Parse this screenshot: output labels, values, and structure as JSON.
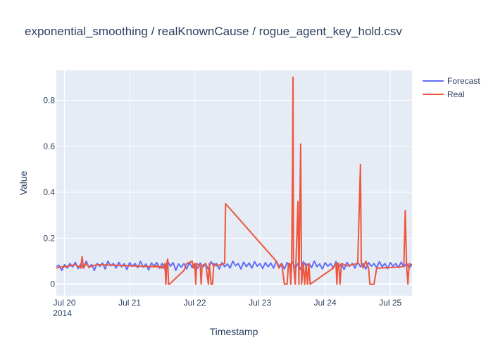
{
  "chart_data": {
    "type": "line",
    "title": "exponential_smoothing / realKnownCause / rogue_agent_key_hold.csv",
    "xlabel": "Timestamp",
    "ylabel": "Value",
    "x_ticks": [
      {
        "date": "2014-07-20",
        "label": "Jul 20",
        "sub": "2014"
      },
      {
        "date": "2014-07-21",
        "label": "Jul 21"
      },
      {
        "date": "2014-07-22",
        "label": "Jul 22"
      },
      {
        "date": "2014-07-23",
        "label": "Jul 23"
      },
      {
        "date": "2014-07-24",
        "label": "Jul 24"
      },
      {
        "date": "2014-07-25",
        "label": "Jul 25"
      }
    ],
    "xlim": [
      "2014-07-19T21:00",
      "2014-07-25T08:00"
    ],
    "y_ticks": [
      0,
      0.2,
      0.4,
      0.6,
      0.8
    ],
    "ylim": [
      -0.05,
      0.93
    ],
    "legend_position": "top-right",
    "series": [
      {
        "name": "Forecast",
        "color": "#636efa",
        "points": [
          [
            "2014-07-19T21:00",
            0.078
          ],
          [
            "2014-07-19T22:00",
            0.082
          ],
          [
            "2014-07-19T23:00",
            0.06
          ],
          [
            "2014-07-20T00:00",
            0.085
          ],
          [
            "2014-07-20T01:00",
            0.07
          ],
          [
            "2014-07-20T02:00",
            0.09
          ],
          [
            "2014-07-20T03:00",
            0.075
          ],
          [
            "2014-07-20T04:00",
            0.095
          ],
          [
            "2014-07-20T05:00",
            0.068
          ],
          [
            "2014-07-20T06:00",
            0.088
          ],
          [
            "2014-07-20T07:00",
            0.07
          ],
          [
            "2014-07-20T08:00",
            0.1
          ],
          [
            "2014-07-20T09:00",
            0.072
          ],
          [
            "2014-07-20T10:00",
            0.086
          ],
          [
            "2014-07-20T11:00",
            0.06
          ],
          [
            "2014-07-20T12:00",
            0.09
          ],
          [
            "2014-07-20T13:00",
            0.078
          ],
          [
            "2014-07-20T14:00",
            0.092
          ],
          [
            "2014-07-20T15:00",
            0.066
          ],
          [
            "2014-07-20T16:00",
            0.1
          ],
          [
            "2014-07-20T17:00",
            0.08
          ],
          [
            "2014-07-20T18:00",
            0.09
          ],
          [
            "2014-07-20T19:00",
            0.07
          ],
          [
            "2014-07-20T20:00",
            0.095
          ],
          [
            "2014-07-20T21:00",
            0.076
          ],
          [
            "2014-07-20T22:00",
            0.089
          ],
          [
            "2014-07-20T23:00",
            0.064
          ],
          [
            "2014-07-21T00:00",
            0.094
          ],
          [
            "2014-07-21T01:00",
            0.078
          ],
          [
            "2014-07-21T02:00",
            0.09
          ],
          [
            "2014-07-21T03:00",
            0.072
          ],
          [
            "2014-07-21T04:00",
            0.099
          ],
          [
            "2014-07-21T05:00",
            0.074
          ],
          [
            "2014-07-21T06:00",
            0.088
          ],
          [
            "2014-07-21T07:00",
            0.062
          ],
          [
            "2014-07-21T08:00",
            0.092
          ],
          [
            "2014-07-21T09:00",
            0.079
          ],
          [
            "2014-07-21T10:00",
            0.094
          ],
          [
            "2014-07-21T11:00",
            0.07
          ],
          [
            "2014-07-21T12:00",
            0.09
          ],
          [
            "2014-07-21T13:00",
            0.065
          ],
          [
            "2014-07-21T14:00",
            0.1
          ],
          [
            "2014-07-21T15:00",
            0.078
          ],
          [
            "2014-07-21T16:00",
            0.094
          ],
          [
            "2014-07-21T17:00",
            0.06
          ],
          [
            "2014-07-21T18:00",
            0.088
          ],
          [
            "2014-07-21T19:00",
            0.074
          ],
          [
            "2014-07-21T20:00",
            0.09
          ],
          [
            "2014-07-21T21:00",
            0.066
          ],
          [
            "2014-07-21T22:00",
            0.095
          ],
          [
            "2014-07-21T23:00",
            0.072
          ],
          [
            "2014-07-22T00:00",
            0.09
          ],
          [
            "2014-07-22T01:00",
            0.07
          ],
          [
            "2014-07-22T02:00",
            0.092
          ],
          [
            "2014-07-22T03:00",
            0.075
          ],
          [
            "2014-07-22T04:00",
            0.088
          ],
          [
            "2014-07-22T05:00",
            0.064
          ],
          [
            "2014-07-22T06:00",
            0.098
          ],
          [
            "2014-07-22T07:00",
            0.078
          ],
          [
            "2014-07-22T08:00",
            0.09
          ],
          [
            "2014-07-22T09:00",
            0.066
          ],
          [
            "2014-07-22T10:00",
            0.094
          ],
          [
            "2014-07-22T11:00",
            0.076
          ],
          [
            "2014-07-22T12:00",
            0.088
          ],
          [
            "2014-07-22T13:00",
            0.07
          ],
          [
            "2014-07-22T14:00",
            0.1
          ],
          [
            "2014-07-22T15:00",
            0.08
          ],
          [
            "2014-07-22T16:00",
            0.09
          ],
          [
            "2014-07-22T17:00",
            0.066
          ],
          [
            "2014-07-22T18:00",
            0.096
          ],
          [
            "2014-07-22T19:00",
            0.076
          ],
          [
            "2014-07-22T20:00",
            0.092
          ],
          [
            "2014-07-22T21:00",
            0.07
          ],
          [
            "2014-07-22T22:00",
            0.098
          ],
          [
            "2014-07-22T23:00",
            0.078
          ],
          [
            "2014-07-23T00:00",
            0.09
          ],
          [
            "2014-07-23T01:00",
            0.068
          ],
          [
            "2014-07-23T02:00",
            0.094
          ],
          [
            "2014-07-23T03:00",
            0.076
          ],
          [
            "2014-07-23T04:00",
            0.092
          ],
          [
            "2014-07-23T05:00",
            0.07
          ],
          [
            "2014-07-23T06:00",
            0.1
          ],
          [
            "2014-07-23T07:00",
            0.078
          ],
          [
            "2014-07-23T08:00",
            0.09
          ],
          [
            "2014-07-23T09:00",
            0.066
          ],
          [
            "2014-07-23T10:00",
            0.094
          ],
          [
            "2014-07-23T11:00",
            0.075
          ],
          [
            "2014-07-23T12:00",
            0.096
          ],
          [
            "2014-07-23T13:00",
            0.07
          ],
          [
            "2014-07-23T14:00",
            0.09
          ],
          [
            "2014-07-23T15:00",
            0.064
          ],
          [
            "2014-07-23T16:00",
            0.098
          ],
          [
            "2014-07-23T17:00",
            0.078
          ],
          [
            "2014-07-23T18:00",
            0.09
          ],
          [
            "2014-07-23T19:00",
            0.072
          ],
          [
            "2014-07-23T20:00",
            0.1
          ],
          [
            "2014-07-23T21:00",
            0.076
          ],
          [
            "2014-07-23T22:00",
            0.088
          ],
          [
            "2014-07-23T23:00",
            0.066
          ],
          [
            "2014-07-24T00:00",
            0.094
          ],
          [
            "2014-07-24T01:00",
            0.078
          ],
          [
            "2014-07-24T02:00",
            0.09
          ],
          [
            "2014-07-24T03:00",
            0.07
          ],
          [
            "2014-07-24T04:00",
            0.098
          ],
          [
            "2014-07-24T05:00",
            0.074
          ],
          [
            "2014-07-24T06:00",
            0.088
          ],
          [
            "2014-07-24T07:00",
            0.064
          ],
          [
            "2014-07-24T08:00",
            0.095
          ],
          [
            "2014-07-24T09:00",
            0.078
          ],
          [
            "2014-07-24T10:00",
            0.09
          ],
          [
            "2014-07-24T11:00",
            0.07
          ],
          [
            "2014-07-24T12:00",
            0.096
          ],
          [
            "2014-07-24T13:00",
            0.076
          ],
          [
            "2014-07-24T14:00",
            0.09
          ],
          [
            "2014-07-24T15:00",
            0.066
          ],
          [
            "2014-07-24T16:00",
            0.094
          ],
          [
            "2014-07-24T17:00",
            0.078
          ],
          [
            "2014-07-24T18:00",
            0.09
          ],
          [
            "2014-07-24T19:00",
            0.072
          ],
          [
            "2014-07-24T20:00",
            0.098
          ],
          [
            "2014-07-24T21:00",
            0.076
          ],
          [
            "2014-07-24T22:00",
            0.09
          ],
          [
            "2014-07-24T23:00",
            0.068
          ],
          [
            "2014-07-25T00:00",
            0.094
          ],
          [
            "2014-07-25T01:00",
            0.078
          ],
          [
            "2014-07-25T02:00",
            0.09
          ],
          [
            "2014-07-25T03:00",
            0.072
          ],
          [
            "2014-07-25T04:00",
            0.096
          ],
          [
            "2014-07-25T05:00",
            0.076
          ],
          [
            "2014-07-25T06:00",
            0.09
          ],
          [
            "2014-07-25T07:00",
            0.07
          ],
          [
            "2014-07-25T08:00",
            0.088
          ]
        ]
      },
      {
        "name": "Real",
        "color": "#ef553b",
        "points": [
          [
            "2014-07-19T21:00",
            0.07
          ],
          [
            "2014-07-19T23:00",
            0.075
          ],
          [
            "2014-07-20T02:00",
            0.08
          ],
          [
            "2014-07-20T04:00",
            0.085
          ],
          [
            "2014-07-20T06:00",
            0.07
          ],
          [
            "2014-07-20T06:30",
            0.12
          ],
          [
            "2014-07-20T07:00",
            0.07
          ],
          [
            "2014-07-20T08:00",
            0.09
          ],
          [
            "2014-07-20T09:00",
            0.075
          ],
          [
            "2014-07-20T12:00",
            0.085
          ],
          [
            "2014-07-21T12:00",
            0.075
          ],
          [
            "2014-07-21T09:00",
            0.08
          ],
          [
            "2014-07-21T12:00",
            0.07
          ],
          [
            "2014-07-21T13:00",
            0.09
          ],
          [
            "2014-07-21T13:20",
            0.0
          ],
          [
            "2014-07-21T13:40",
            0.09
          ],
          [
            "2014-07-21T14:00",
            0.11
          ],
          [
            "2014-07-21T14:20",
            0.0
          ],
          [
            "2014-07-21T14:40",
            0.0
          ],
          [
            "2014-07-21T20:00",
            0.06
          ],
          [
            "2014-07-21T21:00",
            0.09
          ],
          [
            "2014-07-21T23:00",
            0.1
          ],
          [
            "2014-07-21T23:30",
            0.07
          ],
          [
            "2014-07-22T00:00",
            0.09
          ],
          [
            "2014-07-22T00:20",
            0.0
          ],
          [
            "2014-07-22T00:40",
            0.09
          ],
          [
            "2014-07-22T02:00",
            0.08
          ],
          [
            "2014-07-22T02:20",
            0.0
          ],
          [
            "2014-07-22T02:40",
            0.08
          ],
          [
            "2014-07-22T04:00",
            0.09
          ],
          [
            "2014-07-22T05:00",
            0.0
          ],
          [
            "2014-07-22T05:20",
            0.09
          ],
          [
            "2014-07-22T06:00",
            0.0
          ],
          [
            "2014-07-22T06:30",
            0.0
          ],
          [
            "2014-07-22T07:00",
            0.09
          ],
          [
            "2014-07-22T08:00",
            0.08
          ],
          [
            "2014-07-22T11:00",
            0.09
          ],
          [
            "2014-07-22T11:20",
            0.35
          ],
          [
            "2014-07-23T06:00",
            0.1
          ],
          [
            "2014-07-23T07:00",
            0.07
          ],
          [
            "2014-07-23T08:00",
            0.09
          ],
          [
            "2014-07-23T09:00",
            0.0
          ],
          [
            "2014-07-23T10:00",
            0.0
          ],
          [
            "2014-07-23T10:30",
            0.09
          ],
          [
            "2014-07-23T11:00",
            0.09
          ],
          [
            "2014-07-23T11:20",
            0.0
          ],
          [
            "2014-07-23T11:40",
            0.09
          ],
          [
            "2014-07-23T12:00",
            0.53
          ],
          [
            "2014-07-23T12:10",
            0.9
          ],
          [
            "2014-07-23T12:20",
            0.09
          ],
          [
            "2014-07-23T13:00",
            0.0
          ],
          [
            "2014-07-23T14:00",
            0.36
          ],
          [
            "2014-07-23T14:20",
            0.0
          ],
          [
            "2014-07-23T15:00",
            0.61
          ],
          [
            "2014-07-23T15:20",
            0.0
          ],
          [
            "2014-07-23T16:00",
            0.09
          ],
          [
            "2014-07-23T16:30",
            0.0
          ],
          [
            "2014-07-23T17:00",
            0.09
          ],
          [
            "2014-07-23T17:30",
            0.0
          ],
          [
            "2014-07-23T18:00",
            0.09
          ],
          [
            "2014-07-23T18:30",
            0.0
          ],
          [
            "2014-07-24T03:00",
            0.07
          ],
          [
            "2014-07-24T04:00",
            0.09
          ],
          [
            "2014-07-24T04:20",
            0.0
          ],
          [
            "2014-07-24T04:40",
            0.09
          ],
          [
            "2014-07-24T05:00",
            0.09
          ],
          [
            "2014-07-24T05:30",
            0.0
          ],
          [
            "2014-07-24T06:00",
            0.09
          ],
          [
            "2014-07-24T08:00",
            0.08
          ],
          [
            "2014-07-24T12:00",
            0.09
          ],
          [
            "2014-07-24T13:00",
            0.52
          ],
          [
            "2014-07-24T13:20",
            0.09
          ],
          [
            "2014-07-24T14:00",
            0.07
          ],
          [
            "2014-07-24T15:00",
            0.1
          ],
          [
            "2014-07-24T16:00",
            0.07
          ],
          [
            "2014-07-24T16:30",
            0.0
          ],
          [
            "2014-07-24T18:00",
            0.0
          ],
          [
            "2014-07-24T19:00",
            0.07
          ],
          [
            "2014-07-24T20:00",
            0.07
          ],
          [
            "2014-07-25T04:00",
            0.075
          ],
          [
            "2014-07-25T05:00",
            0.08
          ],
          [
            "2014-07-25T05:30",
            0.32
          ],
          [
            "2014-07-25T06:00",
            0.08
          ],
          [
            "2014-07-25T06:30",
            0.0
          ],
          [
            "2014-07-25T07:00",
            0.09
          ],
          [
            "2014-07-25T08:00",
            0.08
          ]
        ]
      }
    ]
  }
}
